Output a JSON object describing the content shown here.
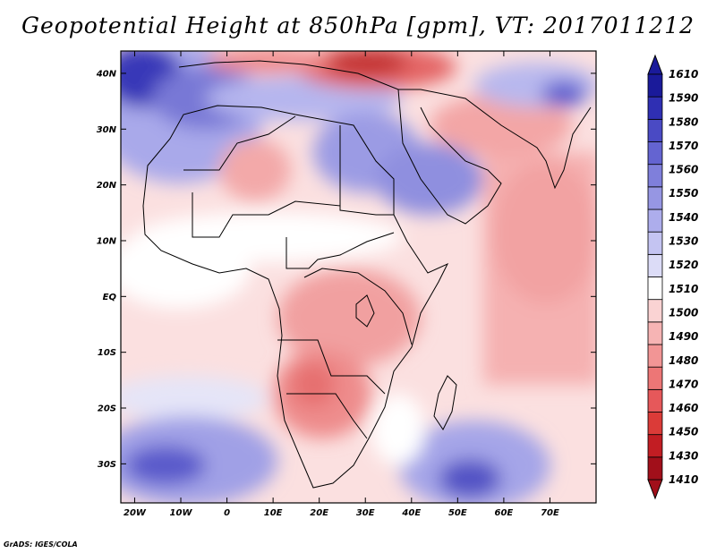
{
  "title": "Geopotential Height at 850hPa [gpm], VT: 2017011212",
  "footer": "GrADS: IGES/COLA",
  "map": {
    "lat_labels": [
      "40N",
      "30N",
      "20N",
      "10N",
      "EQ",
      "10S",
      "20S",
      "30S"
    ],
    "lon_labels": [
      "20W",
      "10W",
      "0",
      "10E",
      "20E",
      "30E",
      "40E",
      "50E",
      "60E",
      "70E"
    ],
    "lat_range": [
      -37,
      44
    ],
    "lon_range": [
      -23,
      80
    ]
  },
  "colorbar": {
    "levels": [
      "1410",
      "1430",
      "1450",
      "1460",
      "1470",
      "1480",
      "1490",
      "1500",
      "1510",
      "1520",
      "1530",
      "1540",
      "1550",
      "1560",
      "1570",
      "1580",
      "1590",
      "1610"
    ],
    "colors": [
      "#a10f1a",
      "#c21d23",
      "#db3b38",
      "#e6585a",
      "#ed7676",
      "#f29595",
      "#f6b4b4",
      "#fad3d3",
      "#ffffff",
      "#dcdcf7",
      "#c4c4f2",
      "#adadec",
      "#9696e3",
      "#7f7fdb",
      "#6464d1",
      "#4a4ac4",
      "#2f2fb3",
      "#1a1a9a"
    ],
    "min_color": "#a10f1a",
    "max_color": "#1a1a9a"
  }
}
